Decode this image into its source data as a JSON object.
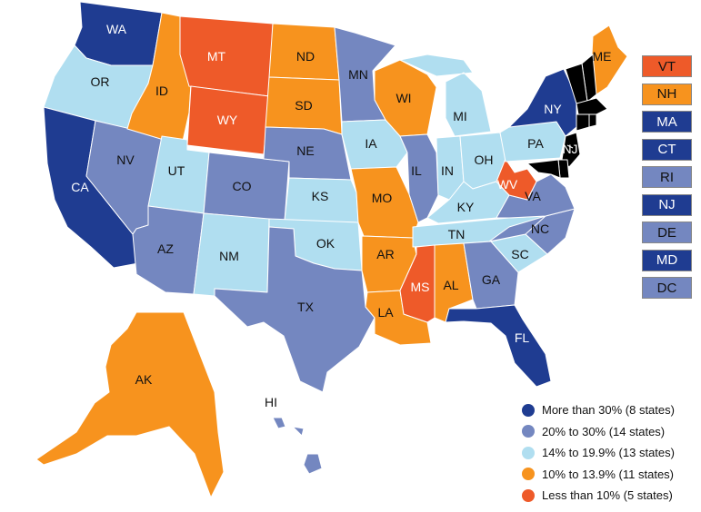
{
  "colors": {
    "c30": "#1f3c91",
    "c20": "#7487c0",
    "c14": "#b0def0",
    "c10": "#f7931e",
    "c0": "#ee5a29"
  },
  "legend": [
    {
      "label": "More than 30% (8 states)",
      "category": "c30"
    },
    {
      "label": "20% to 30% (14 states)",
      "category": "c20"
    },
    {
      "label": "14% to 19.9% (13 states)",
      "category": "c14"
    },
    {
      "label": "10% to 13.9% (11 states)",
      "category": "c10"
    },
    {
      "label": "Less than 10% (5 states)",
      "category": "c0"
    }
  ],
  "small_states": [
    {
      "abbr": "VT",
      "category": "c0"
    },
    {
      "abbr": "NH",
      "category": "c10"
    },
    {
      "abbr": "MA",
      "category": "c30"
    },
    {
      "abbr": "CT",
      "category": "c30"
    },
    {
      "abbr": "RI",
      "category": "c20"
    },
    {
      "abbr": "NJ",
      "category": "c30"
    },
    {
      "abbr": "DE",
      "category": "c20"
    },
    {
      "abbr": "MD",
      "category": "c30"
    },
    {
      "abbr": "DC",
      "category": "c20"
    }
  ],
  "states": {
    "WA": "c30",
    "OR": "c14",
    "CA": "c30",
    "ID": "c10",
    "NV": "c20",
    "MT": "c0",
    "WY": "c0",
    "UT": "c14",
    "AZ": "c20",
    "CO": "c20",
    "NM": "c14",
    "ND": "c10",
    "SD": "c10",
    "NE": "c20",
    "KS": "c14",
    "OK": "c14",
    "TX": "c20",
    "MN": "c20",
    "IA": "c14",
    "MO": "c10",
    "AR": "c10",
    "LA": "c10",
    "WI": "c10",
    "IL": "c20",
    "MI": "c14",
    "IN": "c14",
    "OH": "c14",
    "KY": "c14",
    "TN": "c14",
    "MS": "c0",
    "AL": "c10",
    "GA": "c20",
    "FL": "c30",
    "SC": "c14",
    "NC": "c20",
    "VA": "c20",
    "WV": "c0",
    "PA": "c14",
    "NY": "c30",
    "ME": "c10",
    "AK": "c10",
    "HI": "c20"
  },
  "labels": {
    "WA": "WA",
    "OR": "OR",
    "CA": "CA",
    "ID": "ID",
    "NV": "NV",
    "MT": "MT",
    "WY": "WY",
    "UT": "UT",
    "AZ": "AZ",
    "CO": "CO",
    "NM": "NM",
    "ND": "ND",
    "SD": "SD",
    "NE": "NE",
    "KS": "KS",
    "OK": "OK",
    "TX": "TX",
    "MN": "MN",
    "IA": "IA",
    "MO": "MO",
    "AR": "AR",
    "LA": "LA",
    "WI": "WI",
    "IL": "IL",
    "MI": "MI",
    "IN": "IN",
    "OH": "OH",
    "KY": "KY",
    "TN": "TN",
    "MS": "MS",
    "AL": "AL",
    "GA": "GA",
    "FL": "FL",
    "SC": "SC",
    "NC": "NC",
    "VA": "VA",
    "WV": "WV",
    "PA": "PA",
    "NY": "NY",
    "NJ": "NJ",
    "ME": "ME",
    "AK": "AK",
    "HI": "HI"
  }
}
